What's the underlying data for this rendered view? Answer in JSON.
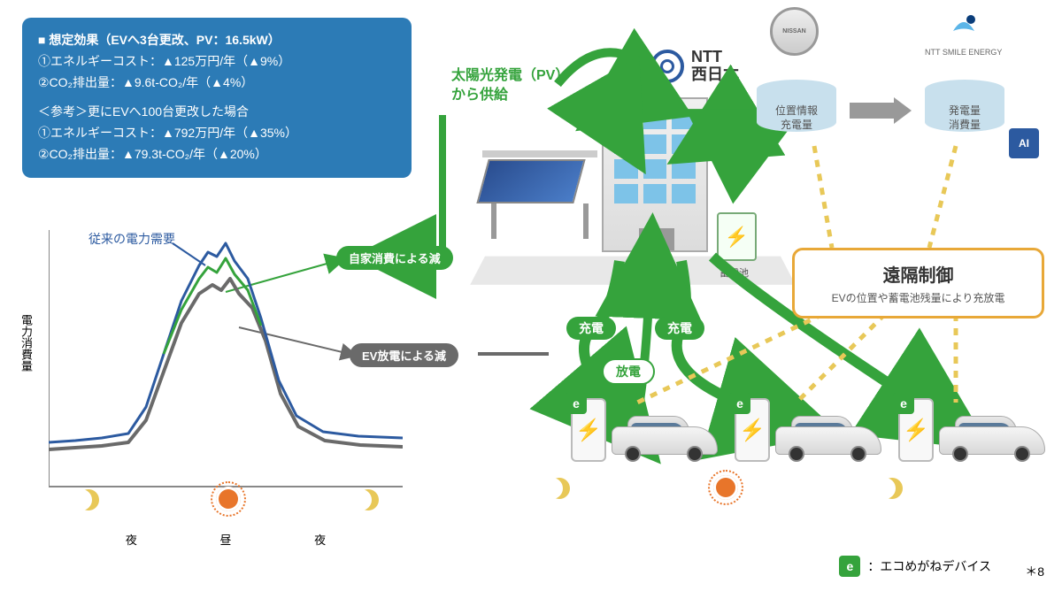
{
  "effect": {
    "title": "■ 想定効果（EVへ3台更改、PV：16.5kW）",
    "line1": "①エネルギーコスト：▲125万円/年（▲9%）",
    "line2": "②CO₂排出量：▲9.6t-CO₂/年（▲4%）",
    "ref_title": "＜参考＞更にEVへ100台更改した場合",
    "ref1": "①エネルギーコスト：▲792万円/年（▲35%）",
    "ref2": "②CO₂排出量：▲79.3t-CO₂/年（▲20%）"
  },
  "pv_label_l1": "太陽光発電（PV）",
  "pv_label_l2": "から供給",
  "ntt_name": "NTT\n西日本",
  "chart": {
    "yaxis": "電力消費量",
    "xaxis": [
      "夜",
      "昼",
      "夜"
    ],
    "demand_label": "従来の電力需要",
    "series": {
      "blue": {
        "color": "#2c5aa0",
        "width": 3,
        "points": [
          [
            0,
            240
          ],
          [
            30,
            238
          ],
          [
            60,
            235
          ],
          [
            90,
            230
          ],
          [
            110,
            200
          ],
          [
            130,
            140
          ],
          [
            150,
            80
          ],
          [
            170,
            40
          ],
          [
            180,
            25
          ],
          [
            190,
            30
          ],
          [
            200,
            15
          ],
          [
            210,
            35
          ],
          [
            225,
            55
          ],
          [
            240,
            100
          ],
          [
            260,
            170
          ],
          [
            280,
            210
          ],
          [
            310,
            228
          ],
          [
            350,
            233
          ],
          [
            400,
            235
          ]
        ]
      },
      "green": {
        "color": "#35a33c",
        "width": 3,
        "points": [
          [
            130,
            140
          ],
          [
            150,
            90
          ],
          [
            170,
            55
          ],
          [
            180,
            42
          ],
          [
            190,
            48
          ],
          [
            200,
            32
          ],
          [
            210,
            50
          ],
          [
            225,
            68
          ],
          [
            240,
            108
          ]
        ]
      },
      "gray": {
        "color": "#6a6a6a",
        "width": 4,
        "points": [
          [
            0,
            248
          ],
          [
            30,
            246
          ],
          [
            60,
            244
          ],
          [
            90,
            240
          ],
          [
            110,
            215
          ],
          [
            130,
            160
          ],
          [
            150,
            105
          ],
          [
            170,
            72
          ],
          [
            185,
            62
          ],
          [
            195,
            68
          ],
          [
            205,
            55
          ],
          [
            215,
            72
          ],
          [
            230,
            88
          ],
          [
            245,
            125
          ],
          [
            262,
            185
          ],
          [
            282,
            222
          ],
          [
            312,
            238
          ],
          [
            352,
            243
          ],
          [
            400,
            245
          ]
        ]
      }
    }
  },
  "pills": {
    "self": "自家消費による減",
    "evdis": "EV放電による減",
    "charge": "充電",
    "discharge": "放電"
  },
  "battery_label": "蓄電池",
  "clouds": {
    "c1l1": "位置情報",
    "c1l2": "充電量",
    "c2l1": "発電量",
    "c2l2": "消費量"
  },
  "nissan": "NISSAN",
  "smile": "NTT SMILE ENERGY",
  "ai": "AI",
  "remote": {
    "title": "遠隔制御",
    "sub": "EVの位置や蓄電池残量により充放電"
  },
  "legend": "：エコめがねデバイス",
  "footnote": "＊8",
  "colors": {
    "green": "#35a33c",
    "blue": "#2c5aa0",
    "gray": "#6a6a6a",
    "orange": "#e8a838",
    "yellow": "#e8c858"
  }
}
